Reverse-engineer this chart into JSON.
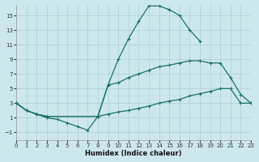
{
  "xlabel": "Humidex (Indice chaleur)",
  "bg_color": "#cde8ec",
  "grid_color": "#aacdd5",
  "line_color": "#1a7068",
  "xlim": [
    0,
    23
  ],
  "ylim": [
    -2,
    16.5
  ],
  "xticks": [
    0,
    1,
    2,
    3,
    4,
    5,
    6,
    7,
    8,
    9,
    10,
    11,
    12,
    13,
    14,
    15,
    16,
    17,
    18,
    19,
    20,
    21,
    22,
    23
  ],
  "yticks": [
    -1,
    1,
    3,
    5,
    7,
    9,
    11,
    13,
    15
  ],
  "curve1_x": [
    0,
    1,
    2,
    3,
    8,
    9,
    10,
    11,
    12,
    13,
    14,
    15,
    16,
    17,
    18
  ],
  "curve1_y": [
    3.0,
    2.0,
    1.5,
    1.2,
    1.2,
    5.5,
    9.0,
    11.8,
    14.2,
    16.3,
    16.3,
    15.8,
    15.0,
    13.0,
    11.5
  ],
  "curve2_x": [
    0,
    1,
    2,
    3,
    8,
    9,
    10,
    11,
    12,
    13,
    14,
    15,
    16,
    17,
    18,
    19,
    20,
    21,
    22,
    23
  ],
  "curve2_y": [
    3.0,
    2.0,
    1.5,
    1.2,
    1.2,
    5.5,
    5.8,
    6.5,
    7.0,
    7.5,
    8.0,
    8.2,
    8.5,
    8.8,
    8.8,
    8.5,
    8.5,
    6.5,
    4.2,
    3.0
  ],
  "curve3_x": [
    0,
    1,
    2,
    3,
    4,
    5,
    6,
    7,
    8,
    9,
    10,
    11,
    12,
    13,
    14,
    15,
    16,
    17,
    18,
    19,
    20,
    21,
    22,
    23
  ],
  "curve3_y": [
    3.0,
    2.0,
    1.5,
    1.0,
    0.8,
    0.3,
    -0.2,
    -0.7,
    1.2,
    1.5,
    1.8,
    2.0,
    2.3,
    2.6,
    3.0,
    3.3,
    3.5,
    4.0,
    4.3,
    4.6,
    5.0,
    5.0,
    3.0,
    3.0
  ]
}
